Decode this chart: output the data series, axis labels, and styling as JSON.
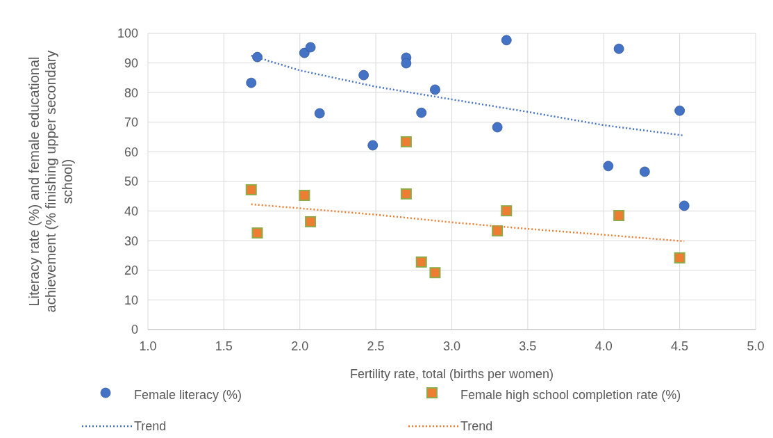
{
  "chart_data": {
    "type": "scatter",
    "xlabel": "Fertility rate, total (births per women)",
    "ylabel": "Literacy rate (%) and female educational achievement (% finishing upper secondary school)",
    "xlim": [
      1.0,
      5.0
    ],
    "xticks": [
      {
        "value": 1,
        "label": "1.0"
      },
      {
        "value": 1.5,
        "label": "1.5"
      },
      {
        "value": 2,
        "label": "2.0"
      },
      {
        "value": 2.5,
        "label": "2.5"
      },
      {
        "value": 3,
        "label": "3.0"
      },
      {
        "value": 3.5,
        "label": "3.5"
      },
      {
        "value": 4,
        "label": "4.0"
      },
      {
        "value": 4.5,
        "label": "4.5"
      },
      {
        "value": 5,
        "label": "5.0"
      }
    ],
    "ylim": [
      0,
      100
    ],
    "yticks": [
      0,
      10,
      20,
      30,
      40,
      50,
      60,
      70,
      80,
      90,
      100
    ],
    "grid": true,
    "legend": "bottom",
    "series": [
      {
        "name": "Female literacy (%)",
        "marker": "circle",
        "color": "#4472c4",
        "x": [
          1.68,
          1.72,
          2.03,
          2.07,
          2.13,
          2.42,
          2.48,
          2.7,
          2.7,
          2.89,
          2.8,
          3.3,
          3.36,
          4.03,
          4.1,
          4.27,
          4.5,
          4.53
        ],
        "values": [
          83.3,
          92,
          93.4,
          95.3,
          73,
          85.9,
          62.2,
          91.8,
          89.9,
          81,
          73.2,
          68.3,
          97.7,
          55.2,
          94.8,
          53.3,
          73.9,
          41.8
        ]
      },
      {
        "name": "Female high school completion rate (%)",
        "marker": "square",
        "color": "#ed7d31",
        "x": [
          1.68,
          1.72,
          2.03,
          2.07,
          2.7,
          2.7,
          2.8,
          2.89,
          3.3,
          3.36,
          4.1,
          4.5
        ],
        "values": [
          47.2,
          32.6,
          45.3,
          36.4,
          63.4,
          45.8,
          22.8,
          19.2,
          33.3,
          40.1,
          38.5,
          24.2
        ]
      },
      {
        "name": "Trend",
        "type": "line",
        "line_style": "dotted",
        "color": "#4472c4",
        "x": [
          1.68,
          2.0,
          2.5,
          3.0,
          3.5,
          4.0,
          4.53
        ],
        "values": [
          92.5,
          87.5,
          82,
          77.7,
          73.5,
          69,
          65.5
        ]
      },
      {
        "name": "Trend",
        "type": "line",
        "line_style": "dotted",
        "color": "#ed7d31",
        "x": [
          1.68,
          2.5,
          3.0,
          3.5,
          4.0,
          4.53
        ],
        "values": [
          42.3,
          38.8,
          36.2,
          34,
          32,
          29.8
        ]
      }
    ]
  }
}
